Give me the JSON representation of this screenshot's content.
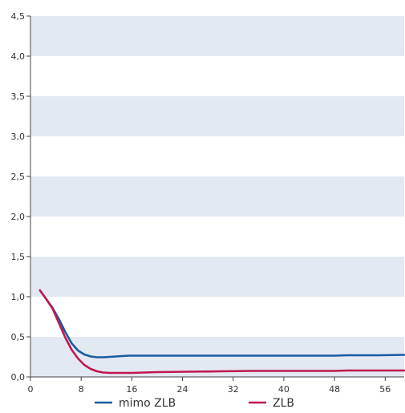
{
  "chart_data": {
    "type": "line",
    "title": "",
    "xlabel": "",
    "ylabel": "",
    "xlim": [
      0,
      59
    ],
    "ylim": [
      0,
      4.5
    ],
    "x_ticks": [
      {
        "value": 0,
        "label": "0"
      },
      {
        "value": 8,
        "label": "8"
      },
      {
        "value": 16,
        "label": "16"
      },
      {
        "value": 24,
        "label": "24"
      },
      {
        "value": 32,
        "label": "32"
      },
      {
        "value": 40,
        "label": "40"
      },
      {
        "value": 48,
        "label": "48"
      },
      {
        "value": 56,
        "label": "56"
      }
    ],
    "y_ticks": [
      {
        "value": 0,
        "label": "0,0"
      },
      {
        "value": 0.5,
        "label": "0,5"
      },
      {
        "value": 1.0,
        "label": "1,0"
      },
      {
        "value": 1.5,
        "label": "1,5"
      },
      {
        "value": 2.0,
        "label": "2,0"
      },
      {
        "value": 2.5,
        "label": "2,5"
      },
      {
        "value": 3.0,
        "label": "3,0"
      },
      {
        "value": 3.5,
        "label": "3,5"
      },
      {
        "value": 4.0,
        "label": "4,0"
      },
      {
        "value": 4.5,
        "label": "4,5"
      }
    ],
    "grid": "horizontal-bands",
    "band_color": "#e3e9f3",
    "legend_position": "bottom",
    "series": [
      {
        "name": "mimo ZLB",
        "color": "#1b5aa0",
        "x": [
          1.5,
          2.5,
          3.5,
          4.5,
          5.5,
          6.5,
          7.5,
          8.5,
          9.5,
          10.5,
          11.5,
          12.5,
          13.5,
          14.5,
          15.5,
          17,
          20,
          25,
          30,
          35,
          40,
          45,
          48,
          50,
          55,
          59
        ],
        "y": [
          1.08,
          0.97,
          0.86,
          0.72,
          0.56,
          0.42,
          0.33,
          0.28,
          0.255,
          0.245,
          0.245,
          0.25,
          0.255,
          0.26,
          0.265,
          0.265,
          0.265,
          0.265,
          0.265,
          0.265,
          0.265,
          0.265,
          0.265,
          0.27,
          0.27,
          0.275
        ]
      },
      {
        "name": "ZLB",
        "color": "#c0184f",
        "x": [
          1.5,
          2.5,
          3.5,
          4.5,
          5.5,
          6.5,
          7.5,
          8.5,
          9.5,
          10.5,
          11.5,
          12.5,
          14,
          16,
          20,
          25,
          30,
          35,
          40,
          45,
          48,
          50,
          55,
          59
        ],
        "y": [
          1.08,
          0.97,
          0.85,
          0.67,
          0.49,
          0.34,
          0.23,
          0.15,
          0.1,
          0.07,
          0.055,
          0.05,
          0.05,
          0.05,
          0.06,
          0.065,
          0.07,
          0.075,
          0.075,
          0.075,
          0.075,
          0.08,
          0.08,
          0.08
        ]
      }
    ]
  }
}
